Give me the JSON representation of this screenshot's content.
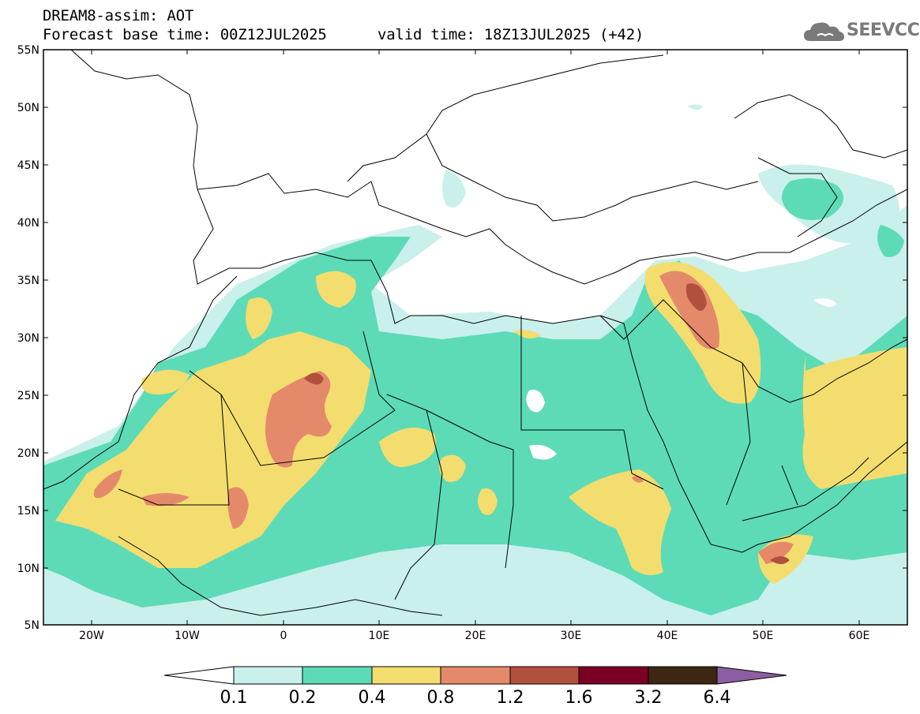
{
  "header": {
    "title_line1": "DREAM8-assim: AOT",
    "base_time": "Forecast base time: 00Z12JUL2025",
    "valid_time": "valid time: 18Z13JUL2025 (+42)"
  },
  "logo": {
    "text": "SEEVCCC",
    "icon": "cloud-icon"
  },
  "map": {
    "lat_labels": [
      "55N",
      "50N",
      "45N",
      "40N",
      "35N",
      "30N",
      "25N",
      "20N",
      "15N",
      "10N",
      "5N"
    ],
    "lon_labels": [
      "20W",
      "10W",
      "0",
      "10E",
      "20E",
      "30E",
      "40E",
      "50E",
      "60E"
    ],
    "lat_range": [
      5,
      55
    ],
    "lon_range": [
      -25,
      65
    ]
  },
  "colorbar": {
    "labels": [
      "0.1",
      "0.2",
      "0.4",
      "0.8",
      "1.2",
      "1.6",
      "3.2",
      "6.4"
    ],
    "colors": [
      "#ffffff",
      "#c9f0ea",
      "#5ddbb6",
      "#f3dd6f",
      "#e5896b",
      "#b2503e",
      "#7a0025",
      "#3d2712",
      "#8c5fa2"
    ]
  }
}
